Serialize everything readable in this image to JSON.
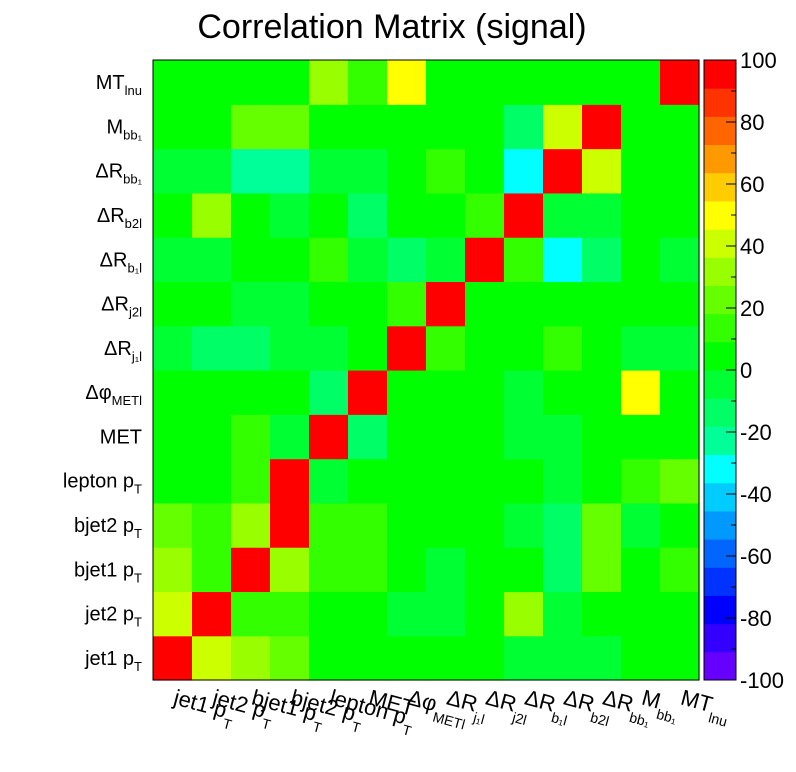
{
  "chart_data": {
    "type": "heatmap",
    "title": "Correlation Matrix (signal)",
    "variables": [
      {
        "main": "jet1 p",
        "sub": "T"
      },
      {
        "main": "jet2 p",
        "sub": "T"
      },
      {
        "main": "bjet1 p",
        "sub": "T"
      },
      {
        "main": "bjet2 p",
        "sub": "T"
      },
      {
        "main": "lepton p",
        "sub": "T"
      },
      {
        "main": "MET",
        "sub": ""
      },
      {
        "main": "Δφ",
        "sub": "METl"
      },
      {
        "main": "ΔR",
        "sub": "j₁l"
      },
      {
        "main": "ΔR",
        "sub": "j2l"
      },
      {
        "main": "ΔR",
        "sub": "b₁l"
      },
      {
        "main": "ΔR",
        "sub": "b2l"
      },
      {
        "main": "ΔR",
        "sub": "bb₁"
      },
      {
        "main": "M",
        "sub": "bb₁"
      },
      {
        "main": "MT",
        "sub": "lnu"
      }
    ],
    "z_range": [
      -100,
      100
    ],
    "colorbar_ticks": [
      "100",
      "80",
      "60",
      "40",
      "20",
      "0",
      "-20",
      "-40",
      "-60",
      "-80",
      "-100"
    ],
    "colors": [
      "#6600ff",
      "#3300ff",
      "#0000ff",
      "#0033ff",
      "#0066ff",
      "#0099ff",
      "#00ccff",
      "#00ffff",
      "#00ff99",
      "#00ff66",
      "#00ff33",
      "#00ff00",
      "#33ff00",
      "#66ff00",
      "#99ff00",
      "#ccff00",
      "#ffff00",
      "#ffcc00",
      "#ff9900",
      "#ff6600",
      "#ff3300",
      "#ff0000"
    ],
    "matrix": [
      [
        100,
        42,
        28,
        24,
        6,
        6,
        2,
        2,
        6,
        -5,
        -8,
        -5,
        6,
        8
      ],
      [
        42,
        100,
        10,
        10,
        8,
        8,
        -2,
        -5,
        4,
        30,
        -5,
        2,
        4,
        4
      ],
      [
        28,
        10,
        100,
        30,
        10,
        10,
        0,
        -5,
        4,
        4,
        -15,
        26,
        6,
        18
      ],
      [
        24,
        10,
        30,
        100,
        10,
        10,
        0,
        0,
        4,
        -5,
        -15,
        26,
        -2,
        2
      ],
      [
        6,
        8,
        10,
        100,
        -2,
        4,
        0,
        0,
        8,
        4,
        -8,
        2,
        10,
        25
      ],
      [
        6,
        8,
        10,
        -2,
        100,
        -12,
        4,
        0,
        0,
        -8,
        -2,
        6,
        2,
        8
      ],
      [
        0,
        0,
        0,
        4,
        -12,
        100,
        4,
        4,
        0,
        -2,
        0,
        2,
        46,
        0
      ],
      [
        -2,
        -10,
        -10,
        -5,
        -5,
        4,
        100,
        12,
        0,
        0,
        10,
        4,
        -2,
        -2
      ],
      [
        4,
        4,
        -2,
        -2,
        0,
        4,
        12,
        100,
        6,
        0,
        0,
        0,
        8,
        4
      ],
      [
        -5,
        -2,
        6,
        6,
        10,
        -2,
        -10,
        -5,
        100,
        12,
        -35,
        -15,
        4,
        -2
      ],
      [
        6,
        30,
        6,
        -2,
        6,
        -10,
        0,
        0,
        12,
        100,
        -2,
        -2,
        0,
        4
      ],
      [
        -5,
        -2,
        -20,
        -20,
        -8,
        -2,
        6,
        10,
        0,
        -35,
        100,
        45,
        4,
        6
      ],
      [
        6,
        4,
        26,
        26,
        2,
        6,
        0,
        4,
        4,
        -15,
        45,
        100,
        2,
        6
      ],
      [
        2,
        2,
        4,
        4,
        30,
        12,
        46,
        4,
        6,
        6,
        4,
        8,
        8,
        100
      ]
    ]
  }
}
